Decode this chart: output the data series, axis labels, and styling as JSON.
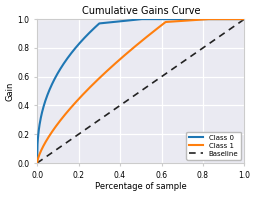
{
  "title": "Cumulative Gains Curve",
  "xlabel": "Percentage of sample",
  "ylabel": "Gain",
  "xlim": [
    0.0,
    1.0
  ],
  "ylim": [
    0.0,
    1.0
  ],
  "xticks": [
    0.0,
    0.2,
    0.4,
    0.6,
    0.8,
    1.0
  ],
  "yticks": [
    0.0,
    0.2,
    0.4,
    0.6,
    0.8,
    1.0
  ],
  "class0_color": "#1f77b4",
  "class1_color": "#ff7f0e",
  "baseline_color": "#222222",
  "legend_labels": [
    "Class 0",
    "Class 1",
    "Baseline"
  ],
  "axes_facecolor": "#eaeaf2",
  "fig_facecolor": "#ffffff",
  "grid_color": "#ffffff",
  "spine_color": "#cccccc"
}
